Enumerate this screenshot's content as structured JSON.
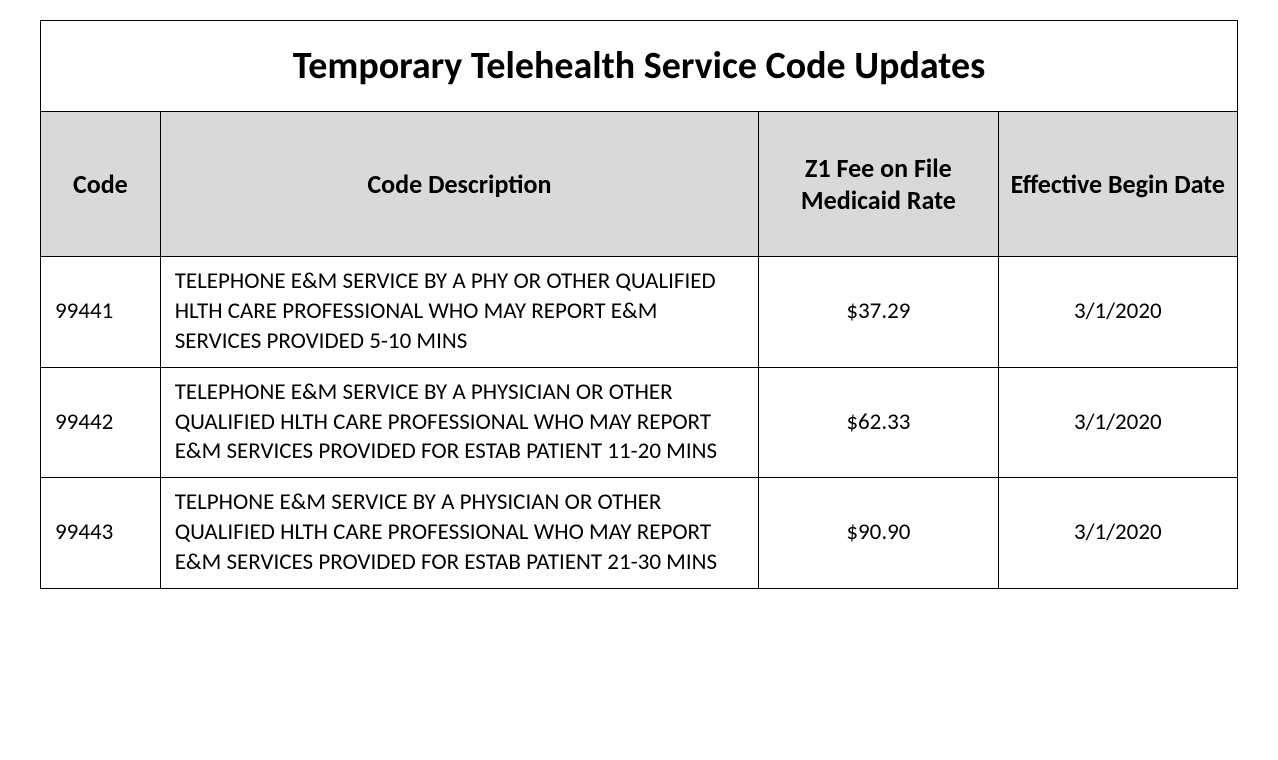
{
  "table": {
    "title": "Temporary Telehealth Service Code Updates",
    "columns": [
      "Code",
      "Code Description",
      "Z1 Fee on File Medicaid Rate",
      "Effective Begin Date"
    ],
    "rows": [
      {
        "code": "99441",
        "description": "TELEPHONE E&M SERVICE BY A PHY OR OTHER QUALIFIED HLTH CARE PROFESSIONAL WHO MAY REPORT E&M SERVICES PROVIDED 5-10 MINS",
        "fee": "$37.29",
        "date": "3/1/2020"
      },
      {
        "code": "99442",
        "description": "TELEPHONE E&M SERVICE BY A PHYSICIAN OR OTHER QUALIFIED HLTH CARE PROFESSIONAL WHO MAY REPORT E&M SERVICES PROVIDED FOR ESTAB PATIENT 11-20 MINS",
        "fee": "$62.33",
        "date": "3/1/2020"
      },
      {
        "code": "99443",
        "description": "TELPHONE E&M SERVICE BY A PHYSICIAN OR OTHER QUALIFIED HLTH CARE PROFESSIONAL WHO MAY REPORT E&M SERVICES PROVIDED FOR ESTAB PATIENT 21-30 MINS",
        "fee": "$90.90",
        "date": "3/1/2020"
      }
    ],
    "column_widths": [
      "10%",
      "50%",
      "20%",
      "20%"
    ],
    "header_bg": "#d9d9d9",
    "border_color": "#000000",
    "title_fontsize": 38,
    "header_fontsize": 26,
    "cell_fontsize": 23
  }
}
